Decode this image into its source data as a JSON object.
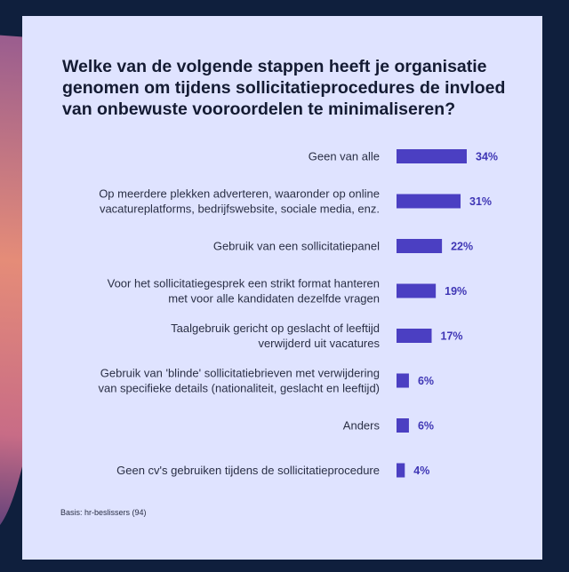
{
  "colors": {
    "background": "#0f1f3d",
    "card": "#dfe3ff",
    "bar": "#4b3fc2",
    "value_text": "#3f36b5",
    "title_text": "#141b33"
  },
  "chart_data": {
    "type": "bar",
    "orientation": "horizontal",
    "title": "Welke van de volgende stappen heeft je organisatie genomen om tijdens sollicitatieprocedures de invloed van onbewuste vooroordelen te minimaliseren?",
    "xlabel": "",
    "ylabel": "",
    "unit": "%",
    "xlim": [
      0,
      34
    ],
    "grid": false,
    "categories": [
      [
        "Geen van alle"
      ],
      [
        "Op meerdere plekken adverteren, waaronder op online",
        "vacatureplatforms, bedrijfswebsite, sociale media, enz."
      ],
      [
        "Gebruik van een sollicitatiepanel"
      ],
      [
        "Voor het sollicitatiegesprek een strikt format hanteren",
        "met voor alle kandidaten dezelfde vragen"
      ],
      [
        "Taalgebruik gericht op geslacht of leeftijd",
        "verwijderd uit vacatures"
      ],
      [
        "Gebruik van 'blinde' sollicitatiebrieven met verwijdering",
        "van specifieke details (nationaliteit, geslacht en leeftijd)"
      ],
      [
        "Anders"
      ],
      [
        "Geen cv's gebruiken tijdens de sollicitatieprocedure"
      ]
    ],
    "values": [
      34,
      31,
      22,
      19,
      17,
      6,
      6,
      4
    ],
    "value_labels": [
      "34%",
      "31%",
      "22%",
      "19%",
      "17%",
      "6%",
      "6%",
      "4%"
    ],
    "footnote": "Basis: hr-beslissers (94)"
  }
}
